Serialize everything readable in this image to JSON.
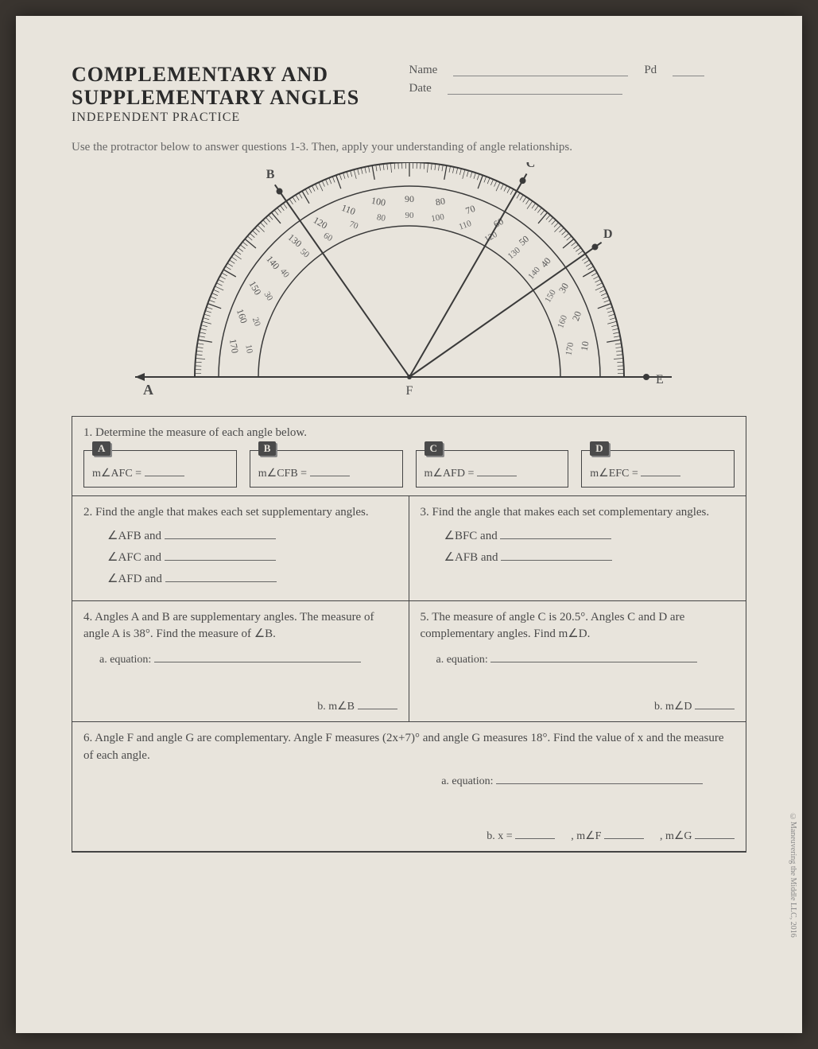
{
  "header": {
    "title_line1": "COMPLEMENTARY AND",
    "title_line2": "SUPPLEMENTARY ANGLES",
    "subtitle": "INDEPENDENT PRACTICE",
    "name_label": "Name",
    "date_label": "Date",
    "pd_label": "Pd"
  },
  "instructions": "Use the protractor below to answer questions 1-3. Then, apply your understanding of angle relationships.",
  "protractor": {
    "outer_labels": [
      "10",
      "20",
      "30",
      "40",
      "50",
      "60",
      "70",
      "80",
      "90",
      "100",
      "110",
      "120",
      "130",
      "140",
      "150",
      "160",
      "170"
    ],
    "inner_labels": [
      "170",
      "160",
      "150",
      "140",
      "130",
      "120",
      "110",
      "100",
      "90",
      "80",
      "70",
      "60",
      "50",
      "40",
      "30",
      "20",
      "10"
    ],
    "points": {
      "A": "A",
      "B": "B",
      "C": "C",
      "D": "D",
      "E": "E",
      "F": "F"
    },
    "ray_angles_deg": {
      "B": 55,
      "C": 120,
      "D": 145
    },
    "colors": {
      "stroke": "#3a3a3a",
      "fill": "#e8e4dc",
      "text": "#4a4a4a"
    }
  },
  "q1": {
    "prompt": "1. Determine the measure of each angle below.",
    "cards": [
      {
        "badge": "A",
        "label": "m∠AFC ="
      },
      {
        "badge": "B",
        "label": "m∠CFB ="
      },
      {
        "badge": "C",
        "label": "m∠AFD ="
      },
      {
        "badge": "D",
        "label": "m∠EFC ="
      }
    ]
  },
  "q2": {
    "prompt": "2. Find the angle that makes each set supplementary angles.",
    "items": [
      "∠AFB and",
      "∠AFC and",
      "∠AFD and"
    ]
  },
  "q3": {
    "prompt": "3. Find the angle that makes each set complementary angles.",
    "items": [
      "∠BFC and",
      "∠AFB and"
    ]
  },
  "q4": {
    "prompt": "4. Angles A and B are supplementary angles. The measure of angle A is 38°. Find the measure of ∠B.",
    "sub_a": "a. equation:",
    "sub_b": "b. m∠B"
  },
  "q5": {
    "prompt": "5. The measure of angle C is 20.5°. Angles C and D are complementary angles. Find m∠D.",
    "sub_a": "a. equation:",
    "sub_b": "b. m∠D"
  },
  "q6": {
    "prompt": "6. Angle F and angle G are complementary. Angle F measures (2x+7)° and angle G measures 18°. Find the value of x and the measure of each angle.",
    "sub_a": "a. equation:",
    "sub_b": "b. x =",
    "mf": ", m∠F",
    "mg": ", m∠G"
  },
  "side_text": "©Maneuvering the Middle LLC, 2016"
}
